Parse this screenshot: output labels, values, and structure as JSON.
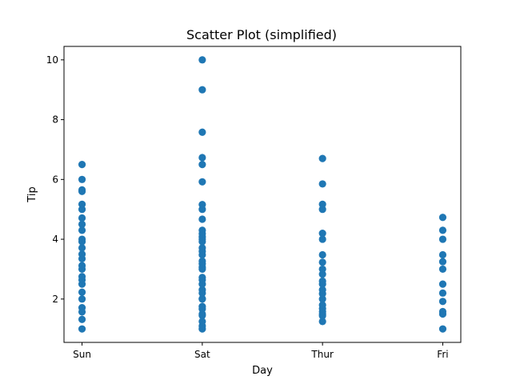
{
  "chart_data": {
    "type": "scatter",
    "title": "Scatter Plot (simplified)",
    "xlabel": "Day",
    "ylabel": "Tip",
    "categories": [
      "Sun",
      "Sat",
      "Thur",
      "Fri"
    ],
    "ylim": [
      0.55,
      10.45
    ],
    "yticks": [
      2,
      4,
      6,
      8,
      10
    ],
    "grid": false,
    "marker_color": "#1f77b4",
    "series": [
      {
        "points": [
          {
            "x": "Sun",
            "y": 1.0
          },
          {
            "x": "Sun",
            "y": 1.32
          },
          {
            "x": "Sun",
            "y": 1.57
          },
          {
            "x": "Sun",
            "y": 1.71
          },
          {
            "x": "Sun",
            "y": 2.0
          },
          {
            "x": "Sun",
            "y": 2.23
          },
          {
            "x": "Sun",
            "y": 2.5
          },
          {
            "x": "Sun",
            "y": 2.64
          },
          {
            "x": "Sun",
            "y": 2.75
          },
          {
            "x": "Sun",
            "y": 3.0
          },
          {
            "x": "Sun",
            "y": 3.12
          },
          {
            "x": "Sun",
            "y": 3.35
          },
          {
            "x": "Sun",
            "y": 3.5
          },
          {
            "x": "Sun",
            "y": 3.71
          },
          {
            "x": "Sun",
            "y": 3.92
          },
          {
            "x": "Sun",
            "y": 4.0
          },
          {
            "x": "Sun",
            "y": 4.3
          },
          {
            "x": "Sun",
            "y": 4.5
          },
          {
            "x": "Sun",
            "y": 4.71
          },
          {
            "x": "Sun",
            "y": 5.0
          },
          {
            "x": "Sun",
            "y": 5.17
          },
          {
            "x": "Sun",
            "y": 5.6
          },
          {
            "x": "Sun",
            "y": 5.65
          },
          {
            "x": "Sun",
            "y": 6.0
          },
          {
            "x": "Sun",
            "y": 6.5
          },
          {
            "x": "Sat",
            "y": 1.0
          },
          {
            "x": "Sat",
            "y": 1.1
          },
          {
            "x": "Sat",
            "y": 1.25
          },
          {
            "x": "Sat",
            "y": 1.45
          },
          {
            "x": "Sat",
            "y": 1.5
          },
          {
            "x": "Sat",
            "y": 1.67
          },
          {
            "x": "Sat",
            "y": 1.75
          },
          {
            "x": "Sat",
            "y": 2.0
          },
          {
            "x": "Sat",
            "y": 2.01
          },
          {
            "x": "Sat",
            "y": 2.2
          },
          {
            "x": "Sat",
            "y": 2.31
          },
          {
            "x": "Sat",
            "y": 2.5
          },
          {
            "x": "Sat",
            "y": 2.64
          },
          {
            "x": "Sat",
            "y": 2.72
          },
          {
            "x": "Sat",
            "y": 3.0
          },
          {
            "x": "Sat",
            "y": 3.06
          },
          {
            "x": "Sat",
            "y": 3.18
          },
          {
            "x": "Sat",
            "y": 3.27
          },
          {
            "x": "Sat",
            "y": 3.48
          },
          {
            "x": "Sat",
            "y": 3.6
          },
          {
            "x": "Sat",
            "y": 3.71
          },
          {
            "x": "Sat",
            "y": 3.92
          },
          {
            "x": "Sat",
            "y": 4.0
          },
          {
            "x": "Sat",
            "y": 4.08
          },
          {
            "x": "Sat",
            "y": 4.19
          },
          {
            "x": "Sat",
            "y": 4.3
          },
          {
            "x": "Sat",
            "y": 4.67
          },
          {
            "x": "Sat",
            "y": 5.0
          },
          {
            "x": "Sat",
            "y": 5.16
          },
          {
            "x": "Sat",
            "y": 5.92
          },
          {
            "x": "Sat",
            "y": 6.5
          },
          {
            "x": "Sat",
            "y": 6.73
          },
          {
            "x": "Sat",
            "y": 7.58
          },
          {
            "x": "Sat",
            "y": 9.0
          },
          {
            "x": "Sat",
            "y": 10.0
          },
          {
            "x": "Thur",
            "y": 1.25
          },
          {
            "x": "Thur",
            "y": 1.44
          },
          {
            "x": "Thur",
            "y": 1.5
          },
          {
            "x": "Thur",
            "y": 1.58
          },
          {
            "x": "Thur",
            "y": 1.68
          },
          {
            "x": "Thur",
            "y": 1.8
          },
          {
            "x": "Thur",
            "y": 2.0
          },
          {
            "x": "Thur",
            "y": 2.18
          },
          {
            "x": "Thur",
            "y": 2.31
          },
          {
            "x": "Thur",
            "y": 2.5
          },
          {
            "x": "Thur",
            "y": 2.6
          },
          {
            "x": "Thur",
            "y": 2.83
          },
          {
            "x": "Thur",
            "y": 3.0
          },
          {
            "x": "Thur",
            "y": 3.23
          },
          {
            "x": "Thur",
            "y": 3.48
          },
          {
            "x": "Thur",
            "y": 4.0
          },
          {
            "x": "Thur",
            "y": 4.2
          },
          {
            "x": "Thur",
            "y": 5.0
          },
          {
            "x": "Thur",
            "y": 5.17
          },
          {
            "x": "Thur",
            "y": 5.85
          },
          {
            "x": "Thur",
            "y": 6.7
          },
          {
            "x": "Fri",
            "y": 1.0
          },
          {
            "x": "Fri",
            "y": 1.5
          },
          {
            "x": "Fri",
            "y": 1.58
          },
          {
            "x": "Fri",
            "y": 1.92
          },
          {
            "x": "Fri",
            "y": 2.2
          },
          {
            "x": "Fri",
            "y": 2.5
          },
          {
            "x": "Fri",
            "y": 3.0
          },
          {
            "x": "Fri",
            "y": 3.25
          },
          {
            "x": "Fri",
            "y": 3.48
          },
          {
            "x": "Fri",
            "y": 4.0
          },
          {
            "x": "Fri",
            "y": 4.3
          },
          {
            "x": "Fri",
            "y": 4.73
          }
        ]
      }
    ]
  }
}
